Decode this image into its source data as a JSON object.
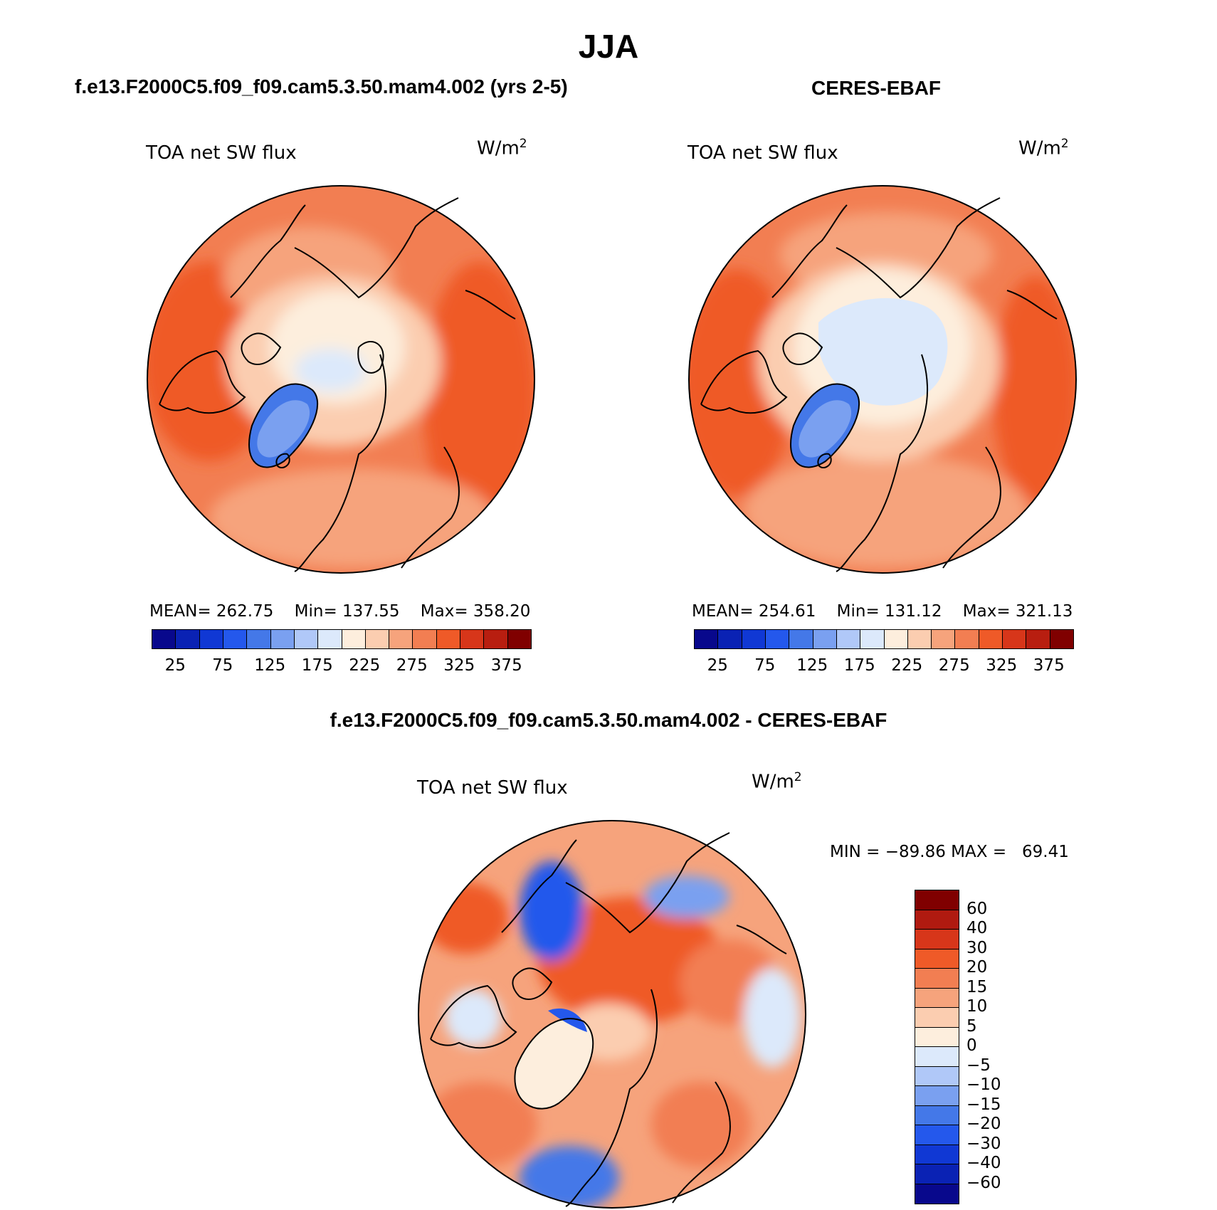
{
  "title": "JJA",
  "panels": [
    {
      "id": "model",
      "subtitle": "f.e13.F2000C5.f09_f09.cam5.3.50.mam4.002 (yrs 2-5)",
      "label": "TOA net SW flux",
      "unit_base": "W/m",
      "unit_sup": "2",
      "stats": {
        "mean_label": "MEAN=",
        "mean": "262.75",
        "min_label": "Min=",
        "min": "137.55",
        "max_label": "Max=",
        "max": "358.20"
      }
    },
    {
      "id": "obs",
      "subtitle": "CERES-EBAF",
      "label": "TOA net SW flux",
      "unit_base": "W/m",
      "unit_sup": "2",
      "stats": {
        "mean_label": "MEAN=",
        "mean": "254.61",
        "min_label": "Min=",
        "min": "131.12",
        "max_label": "Max=",
        "max": "321.13"
      }
    }
  ],
  "abs_colorbar": {
    "colors": [
      "#08088c",
      "#0a22b4",
      "#1038d4",
      "#2458ec",
      "#4478e8",
      "#7aa0f0",
      "#b0c8f8",
      "#dce9fb",
      "#fdeedd",
      "#fbcdb0",
      "#f6a37c",
      "#f27e52",
      "#ef5a28",
      "#d7361a",
      "#b81e10",
      "#800000"
    ],
    "tick_labels": [
      "25",
      "75",
      "125",
      "175",
      "225",
      "275",
      "325",
      "375"
    ]
  },
  "diff_panel": {
    "subtitle": "f.e13.F2000C5.f09_f09.cam5.3.50.mam4.002 - CERES-EBAF",
    "label": "TOA net SW flux",
    "unit_base": "W/m",
    "unit_sup": "2",
    "min_label": "MIN =",
    "min": "−89.86",
    "max_label": "MAX =",
    "max": "69.41"
  },
  "diff_colorbar": {
    "colors": [
      "#800000",
      "#b01a10",
      "#d7361a",
      "#ef5a28",
      "#f27e52",
      "#f6a37c",
      "#fbcdb0",
      "#fdeedd",
      "#dce9fb",
      "#b0c8f8",
      "#7aa0f0",
      "#4478e8",
      "#2458ec",
      "#1038d4",
      "#0a22b4",
      "#08088c"
    ],
    "tick_labels": [
      "60",
      "40",
      "30",
      "20",
      "15",
      "10",
      "5",
      "0",
      "−5",
      "−10",
      "−15",
      "−20",
      "−30",
      "−40",
      "−60"
    ]
  },
  "colors": {
    "orange": "#f27e52",
    "deep_orange": "#ef5a28",
    "light_orange": "#f6a37c",
    "peach": "#fbcdb0",
    "cream": "#fdeedd",
    "pale_blue": "#dce9fb",
    "light_blue": "#b0c8f8",
    "mid_blue": "#7aa0f0",
    "blue": "#4478e8",
    "strong_blue": "#2458ec",
    "dark_red": "#d7361a"
  }
}
